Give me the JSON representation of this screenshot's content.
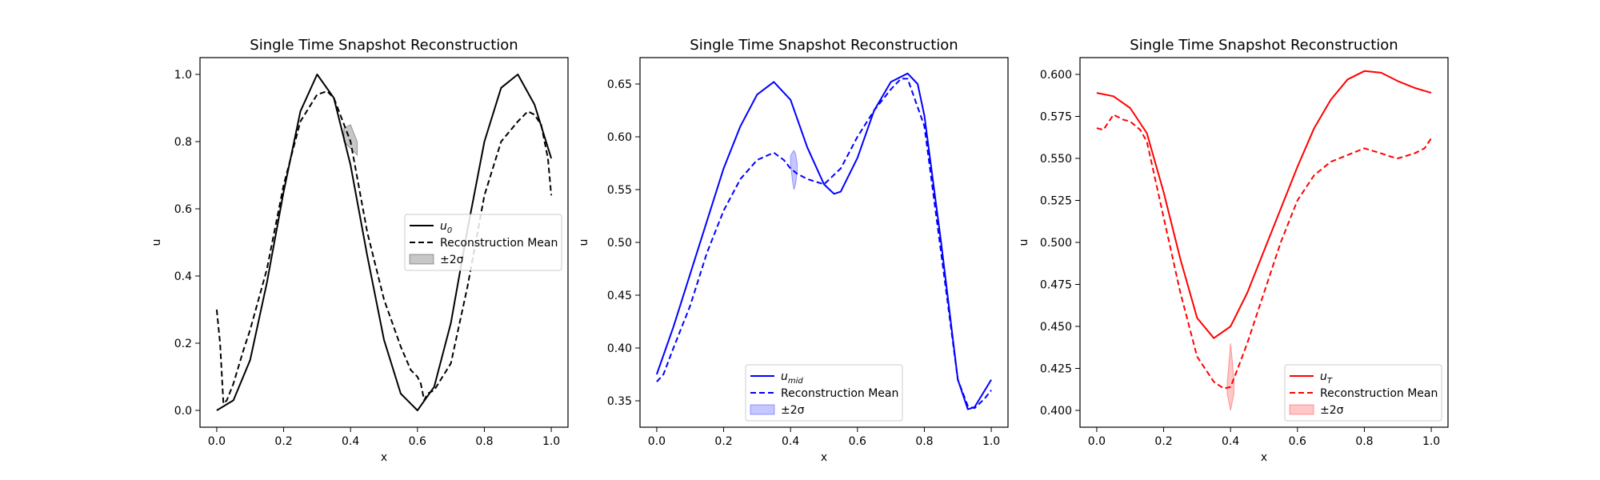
{
  "figure": {
    "background": "#ffffff"
  },
  "chart_data": [
    {
      "type": "line",
      "title": "Single Time Snapshot Reconstruction",
      "xlabel": "x",
      "ylabel": "u",
      "xlim": [
        -0.05,
        1.05
      ],
      "ylim": [
        -0.05,
        1.05
      ],
      "xticks": [
        "0.0",
        "0.2",
        "0.4",
        "0.6",
        "0.8",
        "1.0"
      ],
      "xtick_values": [
        0.0,
        0.2,
        0.4,
        0.6,
        0.8,
        1.0
      ],
      "yticks": [
        "0.0",
        "0.2",
        "0.4",
        "0.6",
        "0.8",
        "1.0"
      ],
      "ytick_values": [
        0.0,
        0.2,
        0.4,
        0.6,
        0.8,
        1.0
      ],
      "color": "#000000",
      "legend_position": "center-right",
      "legend": {
        "true_label": "u",
        "true_sub": "0",
        "mean_label": "Reconstruction Mean",
        "band_label": "±2σ"
      },
      "series": [
        {
          "role": "true",
          "style": "solid",
          "x": [
            0.0,
            0.05,
            0.1,
            0.15,
            0.2,
            0.25,
            0.3,
            0.35,
            0.4,
            0.45,
            0.5,
            0.55,
            0.6,
            0.65,
            0.7,
            0.75,
            0.8,
            0.85,
            0.9,
            0.95,
            1.0
          ],
          "y": [
            0.0,
            0.03,
            0.15,
            0.38,
            0.65,
            0.89,
            1.0,
            0.93,
            0.73,
            0.46,
            0.21,
            0.05,
            0.0,
            0.07,
            0.26,
            0.54,
            0.8,
            0.96,
            1.0,
            0.91,
            0.75
          ]
        },
        {
          "role": "mean",
          "style": "dashed",
          "x": [
            0.0,
            0.01,
            0.02,
            0.03,
            0.05,
            0.08,
            0.1,
            0.15,
            0.2,
            0.25,
            0.3,
            0.33,
            0.35,
            0.4,
            0.45,
            0.5,
            0.55,
            0.58,
            0.6,
            0.61,
            0.62,
            0.63,
            0.65,
            0.7,
            0.75,
            0.8,
            0.85,
            0.9,
            0.93,
            0.95,
            0.97,
            0.99,
            1.0
          ],
          "y": [
            0.3,
            0.2,
            0.02,
            0.03,
            0.08,
            0.18,
            0.24,
            0.42,
            0.67,
            0.86,
            0.94,
            0.95,
            0.93,
            0.8,
            0.53,
            0.33,
            0.19,
            0.12,
            0.1,
            0.08,
            0.03,
            0.05,
            0.06,
            0.14,
            0.37,
            0.64,
            0.8,
            0.86,
            0.89,
            0.88,
            0.85,
            0.75,
            0.64
          ]
        }
      ],
      "band": {
        "x": [
          0.38,
          0.4,
          0.42
        ],
        "lower": [
          0.8,
          0.78,
          0.76
        ],
        "upper": [
          0.84,
          0.85,
          0.8
        ]
      }
    },
    {
      "type": "line",
      "title": "Single Time Snapshot Reconstruction",
      "xlabel": "x",
      "ylabel": "u",
      "xlim": [
        -0.05,
        1.05
      ],
      "ylim": [
        0.325,
        0.675
      ],
      "xticks": [
        "0.0",
        "0.2",
        "0.4",
        "0.6",
        "0.8",
        "1.0"
      ],
      "xtick_values": [
        0.0,
        0.2,
        0.4,
        0.6,
        0.8,
        1.0
      ],
      "yticks": [
        "0.35",
        "0.40",
        "0.45",
        "0.50",
        "0.55",
        "0.60",
        "0.65"
      ],
      "ytick_values": [
        0.35,
        0.4,
        0.45,
        0.5,
        0.55,
        0.6,
        0.65
      ],
      "color": "#0000ff",
      "legend_position": "bottom-center",
      "legend": {
        "true_label": "u",
        "true_sub": "mid",
        "mean_label": "Reconstruction Mean",
        "band_label": "±2σ"
      },
      "series": [
        {
          "role": "true",
          "style": "solid",
          "x": [
            0.0,
            0.05,
            0.1,
            0.15,
            0.2,
            0.25,
            0.3,
            0.35,
            0.4,
            0.45,
            0.5,
            0.53,
            0.55,
            0.6,
            0.65,
            0.7,
            0.75,
            0.78,
            0.8,
            0.85,
            0.9,
            0.93,
            0.95,
            1.0
          ],
          "y": [
            0.375,
            0.42,
            0.47,
            0.52,
            0.57,
            0.61,
            0.64,
            0.652,
            0.635,
            0.59,
            0.555,
            0.546,
            0.548,
            0.58,
            0.625,
            0.652,
            0.66,
            0.65,
            0.62,
            0.5,
            0.37,
            0.342,
            0.344,
            0.37
          ]
        },
        {
          "role": "mean",
          "style": "dashed",
          "x": [
            0.0,
            0.02,
            0.05,
            0.1,
            0.15,
            0.2,
            0.25,
            0.3,
            0.35,
            0.38,
            0.4,
            0.42,
            0.45,
            0.5,
            0.55,
            0.6,
            0.65,
            0.7,
            0.73,
            0.75,
            0.8,
            0.85,
            0.9,
            0.93,
            0.95,
            0.98,
            1.0
          ],
          "y": [
            0.368,
            0.375,
            0.4,
            0.44,
            0.49,
            0.53,
            0.56,
            0.578,
            0.585,
            0.578,
            0.57,
            0.565,
            0.56,
            0.555,
            0.57,
            0.6,
            0.625,
            0.645,
            0.655,
            0.655,
            0.61,
            0.49,
            0.37,
            0.345,
            0.343,
            0.352,
            0.36
          ]
        }
      ],
      "band": {
        "x": [
          0.4,
          0.405,
          0.41,
          0.415,
          0.42
        ],
        "lower": [
          0.575,
          0.56,
          0.55,
          0.555,
          0.568
        ],
        "upper": [
          0.582,
          0.585,
          0.587,
          0.584,
          0.575
        ]
      }
    },
    {
      "type": "line",
      "title": "Single Time Snapshot Reconstruction",
      "xlabel": "x",
      "ylabel": "u",
      "xlim": [
        -0.05,
        1.05
      ],
      "ylim": [
        0.39,
        0.61
      ],
      "xticks": [
        "0.0",
        "0.2",
        "0.4",
        "0.6",
        "0.8",
        "1.0"
      ],
      "xtick_values": [
        0.0,
        0.2,
        0.4,
        0.6,
        0.8,
        1.0
      ],
      "yticks": [
        "0.400",
        "0.425",
        "0.450",
        "0.475",
        "0.500",
        "0.525",
        "0.550",
        "0.575",
        "0.600"
      ],
      "ytick_values": [
        0.4,
        0.425,
        0.45,
        0.475,
        0.5,
        0.525,
        0.55,
        0.575,
        0.6
      ],
      "color": "#ff0000",
      "legend_position": "bottom-right",
      "legend": {
        "true_label": "u",
        "true_sub": "T",
        "mean_label": "Reconstruction Mean",
        "band_label": "±2σ"
      },
      "series": [
        {
          "role": "true",
          "style": "solid",
          "x": [
            0.0,
            0.05,
            0.1,
            0.15,
            0.2,
            0.25,
            0.3,
            0.35,
            0.4,
            0.45,
            0.5,
            0.55,
            0.6,
            0.65,
            0.7,
            0.75,
            0.8,
            0.85,
            0.9,
            0.95,
            1.0
          ],
          "y": [
            0.589,
            0.587,
            0.58,
            0.565,
            0.53,
            0.49,
            0.455,
            0.443,
            0.45,
            0.47,
            0.495,
            0.52,
            0.545,
            0.568,
            0.585,
            0.597,
            0.602,
            0.601,
            0.596,
            0.592,
            0.589
          ]
        },
        {
          "role": "mean",
          "style": "dashed",
          "x": [
            0.0,
            0.02,
            0.05,
            0.08,
            0.1,
            0.13,
            0.15,
            0.2,
            0.25,
            0.3,
            0.35,
            0.38,
            0.4,
            0.42,
            0.45,
            0.5,
            0.55,
            0.6,
            0.65,
            0.7,
            0.75,
            0.8,
            0.85,
            0.88,
            0.9,
            0.95,
            0.98,
            1.0
          ],
          "y": [
            0.568,
            0.567,
            0.576,
            0.573,
            0.572,
            0.567,
            0.56,
            0.515,
            0.47,
            0.432,
            0.417,
            0.413,
            0.414,
            0.424,
            0.44,
            0.47,
            0.5,
            0.525,
            0.54,
            0.548,
            0.552,
            0.556,
            0.553,
            0.551,
            0.55,
            0.553,
            0.556,
            0.562
          ]
        }
      ],
      "band": {
        "x": [
          0.39,
          0.395,
          0.4,
          0.405,
          0.41
        ],
        "lower": [
          0.41,
          0.405,
          0.4,
          0.405,
          0.41
        ],
        "upper": [
          0.416,
          0.428,
          0.44,
          0.43,
          0.418
        ]
      }
    }
  ]
}
